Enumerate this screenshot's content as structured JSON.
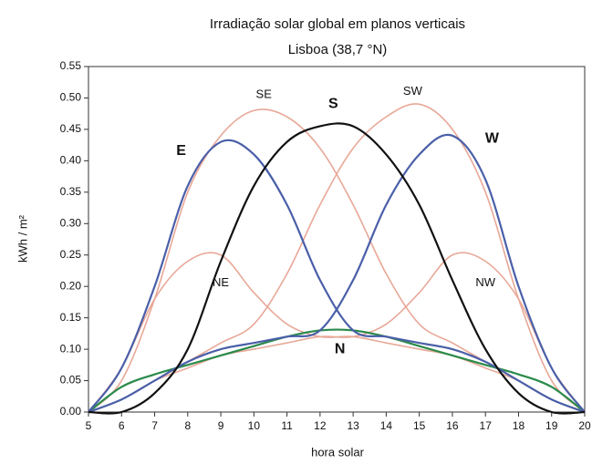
{
  "chart_data": {
    "type": "line",
    "title": "Irradiação solar global em planos verticais",
    "subtitle": "Lisboa (38,7 °N)",
    "x_label": "hora solar",
    "y_label": "kWh / m²",
    "x": [
      5,
      6,
      7,
      8,
      9,
      10,
      11,
      12,
      13,
      14,
      15,
      16,
      17,
      18,
      19,
      20
    ],
    "xlim": [
      5,
      20
    ],
    "xticks": [
      5,
      6,
      7,
      8,
      9,
      10,
      11,
      12,
      13,
      14,
      15,
      16,
      17,
      18,
      19,
      20
    ],
    "ylim": [
      0,
      0.55
    ],
    "yticks": [
      {
        "value": 0,
        "label": "0.00"
      },
      0.05,
      {
        "value": 0.1,
        "label": "0.10"
      },
      0.15,
      {
        "value": 0.2,
        "label": "0.20"
      },
      0.25,
      {
        "value": 0.3,
        "label": "0.30"
      },
      0.35,
      {
        "value": 0.4,
        "label": "0.40"
      },
      0.45,
      {
        "value": 0.5,
        "label": "0.50"
      },
      0.55
    ],
    "grid": false,
    "series": [
      {
        "name": "NE",
        "color": "#e8a898",
        "values": [
          0,
          0.07,
          0.18,
          0.24,
          0.25,
          0.19,
          0.14,
          0.12,
          0.12,
          0.11,
          0.1,
          0.09,
          0.07,
          0.05,
          0.02,
          0
        ]
      },
      {
        "name": "NW",
        "color": "#e8a898",
        "values": [
          0,
          0.02,
          0.05,
          0.07,
          0.09,
          0.1,
          0.11,
          0.12,
          0.12,
          0.14,
          0.19,
          0.25,
          0.24,
          0.18,
          0.07,
          0
        ]
      },
      {
        "name": "SE",
        "color": "#e8a898",
        "values": [
          0,
          0.05,
          0.18,
          0.35,
          0.44,
          0.48,
          0.47,
          0.42,
          0.33,
          0.22,
          0.14,
          0.11,
          0.08,
          0.05,
          0.02,
          0
        ]
      },
      {
        "name": "SW",
        "color": "#e8a898",
        "values": [
          0,
          0.02,
          0.05,
          0.08,
          0.11,
          0.14,
          0.22,
          0.33,
          0.42,
          0.47,
          0.49,
          0.45,
          0.35,
          0.18,
          0.05,
          0
        ]
      },
      {
        "name": "N",
        "color": "#2a8a4a",
        "values": [
          0,
          0.04,
          0.06,
          0.075,
          0.09,
          0.105,
          0.12,
          0.13,
          0.13,
          0.12,
          0.105,
          0.09,
          0.075,
          0.06,
          0.04,
          0
        ]
      },
      {
        "name": "E",
        "color": "#4a5fa8",
        "values": [
          0,
          0.07,
          0.2,
          0.36,
          0.43,
          0.41,
          0.33,
          0.21,
          0.13,
          0.12,
          0.11,
          0.1,
          0.08,
          0.05,
          0.02,
          0
        ]
      },
      {
        "name": "W",
        "color": "#4a5fa8",
        "values": [
          0,
          0.02,
          0.05,
          0.08,
          0.1,
          0.11,
          0.12,
          0.13,
          0.21,
          0.33,
          0.41,
          0.44,
          0.37,
          0.2,
          0.07,
          0
        ]
      },
      {
        "name": "S",
        "color": "#111111",
        "values": [
          0,
          0,
          0.03,
          0.1,
          0.24,
          0.36,
          0.43,
          0.455,
          0.455,
          0.41,
          0.33,
          0.21,
          0.1,
          0.03,
          0,
          0
        ]
      }
    ]
  }
}
